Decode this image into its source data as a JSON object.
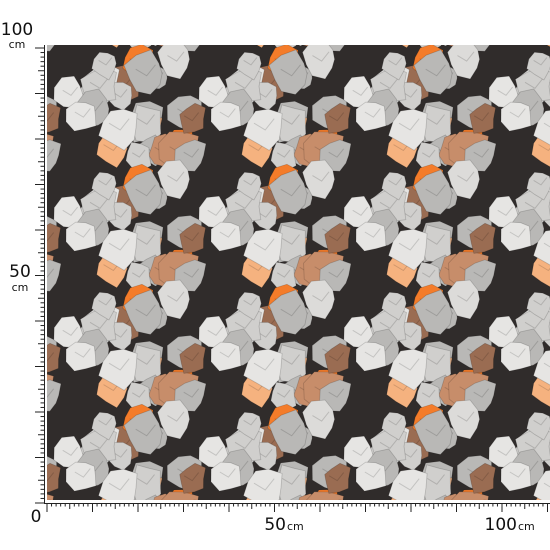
{
  "rulers": {
    "vertical": {
      "top": {
        "number": "100",
        "unit": "cm"
      },
      "middle": {
        "number": "50",
        "unit": "cm"
      },
      "origin": "0"
    },
    "horizontal": {
      "middle": {
        "number": "50",
        "unit": "cm"
      },
      "end": {
        "number": "100",
        "unit": "cm"
      }
    }
  }
}
